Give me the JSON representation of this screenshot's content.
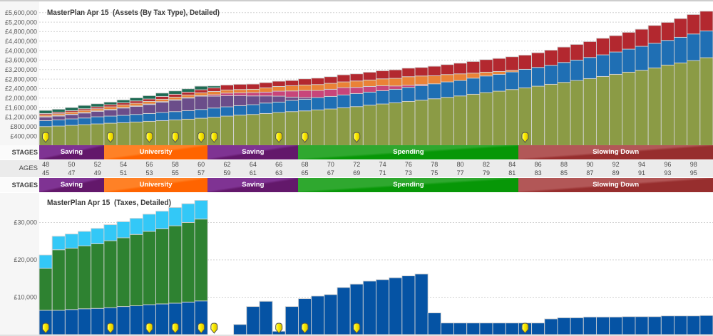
{
  "stages": {
    "label": "STAGES",
    "items": [
      {
        "label": "Saving",
        "from_age": 45,
        "to_age": 49,
        "color": "#7f3393",
        "color_dark": "#63186b"
      },
      {
        "label": "University",
        "from_age": 50,
        "to_age": 57,
        "color": "#ff8126",
        "color_dark": "#ff6400"
      },
      {
        "label": "Saving",
        "from_age": 58,
        "to_age": 64,
        "color": "#7f3393",
        "color_dark": "#63186b"
      },
      {
        "label": "Spending",
        "from_age": 65,
        "to_age": 81,
        "color": "#2fa82f",
        "color_dark": "#079707"
      },
      {
        "label": "Slowing Down",
        "from_age": 82,
        "to_age": 96,
        "color": "#b25757",
        "color_dark": "#972e2e"
      }
    ]
  },
  "ages": {
    "label": "AGES",
    "row1": [
      48,
      50,
      52,
      54,
      56,
      58,
      60,
      62,
      64,
      66,
      68,
      70,
      72,
      74,
      76,
      78,
      80,
      82,
      84,
      86,
      88,
      90,
      92,
      94,
      96,
      98
    ],
    "row2": [
      45,
      47,
      49,
      51,
      53,
      55,
      57,
      59,
      61,
      63,
      65,
      67,
      69,
      71,
      73,
      75,
      77,
      79,
      81,
      83,
      85,
      87,
      89,
      91,
      93,
      95
    ]
  },
  "event_markers": {
    "icon": "shield-marker",
    "color": "#fff000",
    "ages": [
      45,
      50,
      53,
      55,
      57,
      58,
      63,
      65,
      69,
      82
    ]
  },
  "chart_data": [
    {
      "type": "bar",
      "stacked": true,
      "title": "MasterPlan Apr 15  (Assets (By Tax Type), Detailed)",
      "xlabel": "",
      "ylabel": "",
      "ylim": [
        0,
        6000000
      ],
      "grid": true,
      "legend": "none",
      "categories": [
        45,
        46,
        47,
        48,
        49,
        50,
        51,
        52,
        53,
        54,
        55,
        56,
        57,
        58,
        59,
        60,
        61,
        62,
        63,
        64,
        65,
        66,
        67,
        68,
        69,
        70,
        71,
        72,
        73,
        74,
        75,
        76,
        77,
        78,
        79,
        80,
        81,
        82,
        83,
        84,
        85,
        86,
        87,
        88,
        89,
        90,
        91,
        92,
        93,
        94,
        95,
        96
      ],
      "y_ticks": [
        {
          "value": 400000,
          "label": "£400,000"
        },
        {
          "value": 800000,
          "label": "£800,000"
        },
        {
          "value": 1200000,
          "label": "£1,200,000"
        },
        {
          "value": 1600000,
          "label": "£1,600,000"
        },
        {
          "value": 2000000,
          "label": "£2,000,000"
        },
        {
          "value": 2400000,
          "label": "£2,400,000"
        },
        {
          "value": 2800000,
          "label": "£2,800,000"
        },
        {
          "value": 3200000,
          "label": "£3,200,000"
        },
        {
          "value": 3600000,
          "label": "£3,600,000"
        },
        {
          "value": 4000000,
          "label": "£4,000,000"
        },
        {
          "value": 4400000,
          "label": "£4,400,000"
        },
        {
          "value": 4800000,
          "label": "£4,800,000"
        },
        {
          "value": 5200000,
          "label": "£5,200,000"
        },
        {
          "value": 5600000,
          "label": "£5,600,000"
        }
      ],
      "series": [
        {
          "color": "#8b9b45",
          "values": [
            800000,
            820000,
            850000,
            880000,
            910000,
            940000,
            960000,
            990000,
            1020000,
            1050000,
            1080000,
            1110000,
            1150000,
            1190000,
            1240000,
            1280000,
            1310000,
            1350000,
            1390000,
            1430000,
            1460000,
            1500000,
            1540000,
            1590000,
            1640000,
            1700000,
            1750000,
            1800000,
            1860000,
            1910000,
            1970000,
            2030000,
            2090000,
            2160000,
            2230000,
            2290000,
            2360000,
            2430000,
            2500000,
            2580000,
            2660000,
            2740000,
            2820000,
            2910000,
            3000000,
            3090000,
            3170000,
            3270000,
            3390000,
            3480000,
            3580000,
            3700000
          ]
        },
        {
          "color": "#1f6fb4",
          "values": [
            250000,
            260000,
            270000,
            280000,
            300000,
            300000,
            310000,
            320000,
            330000,
            340000,
            350000,
            360000,
            370000,
            390000,
            390000,
            400000,
            410000,
            440000,
            440000,
            470000,
            490000,
            520000,
            530000,
            540000,
            550000,
            550000,
            560000,
            570000,
            590000,
            610000,
            630000,
            650000,
            650000,
            680000,
            700000,
            710000,
            740000,
            780000,
            790000,
            800000,
            840000,
            860000,
            890000,
            910000,
            940000,
            970000,
            1010000,
            1040000,
            1040000,
            1080000,
            1120000,
            1130000
          ]
        },
        {
          "color": "#6b4d8a",
          "values": [
            150000,
            160000,
            180000,
            210000,
            230000,
            260000,
            310000,
            340000,
            380000,
            440000,
            480000,
            530000,
            560000,
            500000,
            470000,
            420000,
            370000,
            300000,
            250000,
            140000,
            70000,
            0,
            0,
            0,
            0,
            0,
            0,
            0,
            0,
            0,
            0,
            0,
            0,
            0,
            0,
            0,
            0,
            0,
            0,
            0,
            0,
            0,
            0,
            0,
            0,
            0,
            0,
            0,
            0,
            0,
            0,
            0
          ]
        },
        {
          "color": "#c8457a",
          "values": [
            20000,
            20000,
            20000,
            20000,
            20000,
            20000,
            20000,
            20000,
            20000,
            20000,
            20000,
            20000,
            20000,
            60000,
            110000,
            120000,
            140000,
            160000,
            210000,
            260000,
            300000,
            300000,
            300000,
            310000,
            260000,
            240000,
            210000,
            140000,
            90000,
            50000,
            0,
            0,
            0,
            0,
            0,
            0,
            0,
            0,
            0,
            0,
            0,
            0,
            0,
            0,
            0,
            0,
            0,
            0,
            0,
            0,
            0,
            0
          ]
        },
        {
          "color": "#ea8236",
          "values": [
            70000,
            80000,
            90000,
            90000,
            90000,
            110000,
            110000,
            110000,
            110000,
            100000,
            110000,
            110000,
            120000,
            140000,
            130000,
            140000,
            140000,
            180000,
            200000,
            220000,
            230000,
            250000,
            250000,
            240000,
            270000,
            270000,
            290000,
            320000,
            360000,
            360000,
            340000,
            310000,
            280000,
            210000,
            160000,
            120000,
            70000,
            0,
            0,
            0,
            0,
            0,
            0,
            0,
            0,
            0,
            0,
            0,
            0,
            0,
            0,
            0
          ]
        },
        {
          "color": "#b3282f",
          "values": [
            60000,
            60000,
            60000,
            70000,
            80000,
            90000,
            90000,
            100000,
            100000,
            120000,
            120000,
            120000,
            130000,
            150000,
            210000,
            220000,
            220000,
            220000,
            220000,
            220000,
            260000,
            270000,
            280000,
            300000,
            300000,
            330000,
            340000,
            360000,
            360000,
            360000,
            400000,
            420000,
            450000,
            490000,
            530000,
            550000,
            570000,
            600000,
            620000,
            640000,
            650000,
            660000,
            670000,
            700000,
            690000,
            710000,
            720000,
            750000,
            760000,
            790000,
            820000,
            830000
          ]
        },
        {
          "color": "#1f6b54",
          "values": [
            130000,
            130000,
            130000,
            140000,
            130000,
            110000,
            120000,
            130000,
            140000,
            140000,
            140000,
            140000,
            150000,
            80000,
            0,
            0,
            0,
            0,
            0,
            0,
            0,
            0,
            0,
            0,
            0,
            0,
            0,
            0,
            0,
            0,
            0,
            0,
            0,
            0,
            0,
            0,
            0,
            0,
            0,
            0,
            0,
            0,
            0,
            0,
            0,
            0,
            0,
            0,
            0,
            0,
            0,
            0
          ]
        }
      ]
    },
    {
      "type": "bar",
      "stacked": true,
      "title": "MasterPlan Apr 15  (Taxes, Detailed)",
      "xlabel": "",
      "ylabel": "",
      "ylim": [
        0,
        37700
      ],
      "grid": true,
      "legend": "none",
      "categories": [
        45,
        46,
        47,
        48,
        49,
        50,
        51,
        52,
        53,
        54,
        55,
        56,
        57,
        58,
        59,
        60,
        61,
        62,
        63,
        64,
        65,
        66,
        67,
        68,
        69,
        70,
        71,
        72,
        73,
        74,
        75,
        76,
        77,
        78,
        79,
        80,
        81,
        82,
        83,
        84,
        85,
        86,
        87,
        88,
        89,
        90,
        91,
        92,
        93,
        94,
        95,
        96
      ],
      "y_ticks": [
        {
          "value": 10000,
          "label": "£10,000"
        },
        {
          "value": 20000,
          "label": "£20,000"
        },
        {
          "value": 30000,
          "label": "£30,000"
        }
      ],
      "series": [
        {
          "color": "#0553a4",
          "values": [
            6500,
            6500,
            6700,
            6900,
            7000,
            7200,
            7500,
            7700,
            8000,
            8200,
            8400,
            8700,
            9000,
            0,
            0,
            2700,
            7500,
            8900,
            900,
            7500,
            9600,
            10300,
            10700,
            12600,
            13500,
            14300,
            14700,
            15200,
            15700,
            16200,
            5800,
            3100,
            3100,
            3100,
            3100,
            3100,
            3100,
            3100,
            3100,
            4200,
            4500,
            4500,
            4700,
            4700,
            4700,
            4800,
            4800,
            4800,
            5000,
            5000,
            5000,
            5100
          ]
        },
        {
          "color": "#2e8231",
          "values": [
            11200,
            16200,
            16400,
            16800,
            17300,
            17900,
            18400,
            19100,
            19600,
            20100,
            20700,
            21300,
            21900,
            0,
            0,
            0,
            0,
            0,
            0,
            0,
            0,
            0,
            0,
            0,
            0,
            0,
            0,
            0,
            0,
            0,
            0,
            0,
            0,
            0,
            0,
            0,
            0,
            0,
            0,
            0,
            0,
            0,
            0,
            0,
            0,
            0,
            0,
            0,
            0,
            0,
            0,
            0
          ]
        },
        {
          "color": "#33c8f7",
          "values": [
            3600,
            3600,
            3800,
            3900,
            4100,
            4300,
            4300,
            4300,
            4600,
            4700,
            4900,
            5000,
            5000,
            0,
            0,
            0,
            0,
            0,
            0,
            0,
            0,
            0,
            0,
            0,
            0,
            0,
            0,
            0,
            0,
            0,
            0,
            0,
            0,
            0,
            0,
            0,
            0,
            0,
            0,
            0,
            0,
            0,
            0,
            0,
            0,
            0,
            0,
            0,
            0,
            0,
            0,
            0
          ]
        }
      ]
    }
  ]
}
